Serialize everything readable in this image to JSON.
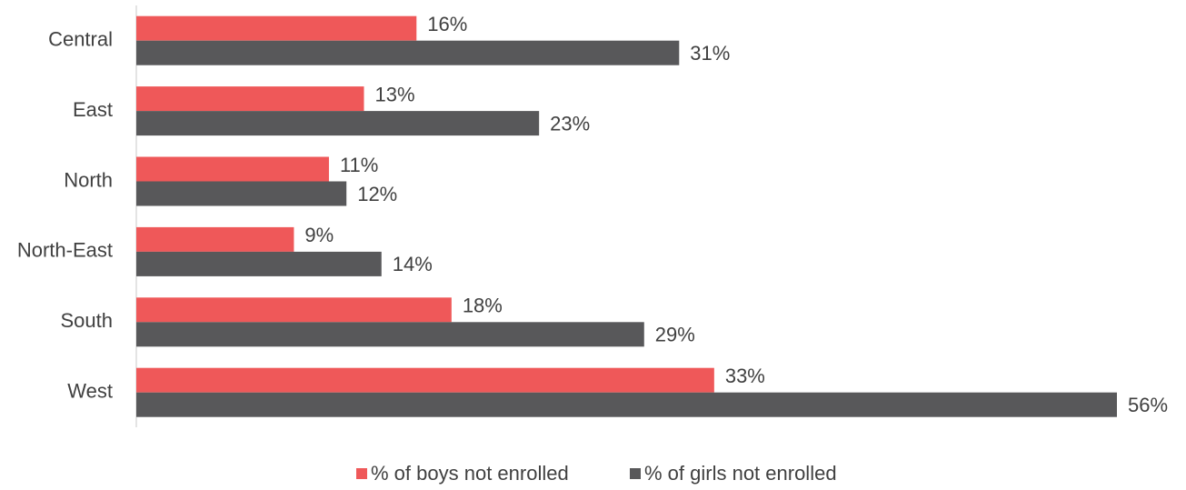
{
  "chart_data": {
    "type": "bar",
    "orientation": "horizontal",
    "categories": [
      "Central",
      "East",
      "North",
      "North-East",
      "South",
      "West"
    ],
    "series": [
      {
        "name": "% of boys not enrolled",
        "color": "#ef5859",
        "values": [
          16,
          13,
          11,
          9,
          18,
          33
        ],
        "value_labels": [
          "16%",
          "13%",
          "11%",
          "9%",
          "18%",
          "33%"
        ]
      },
      {
        "name": "% of girls not enrolled",
        "color": "#58585a",
        "values": [
          31,
          23,
          12,
          14,
          29,
          56
        ],
        "value_labels": [
          "31%",
          "23%",
          "12%",
          "14%",
          "29%",
          "56%"
        ]
      }
    ],
    "legend": "bottom"
  }
}
